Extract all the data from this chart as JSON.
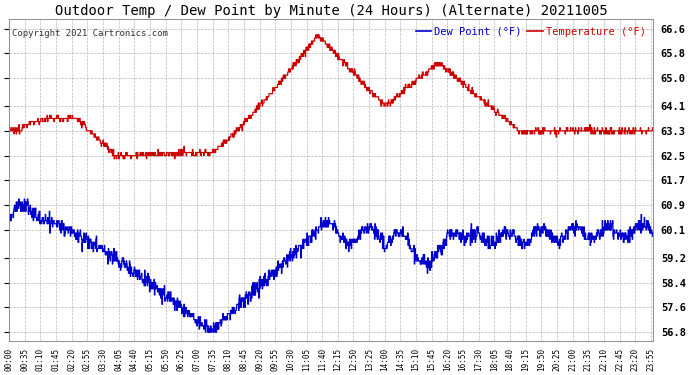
{
  "title": "Outdoor Temp / Dew Point by Minute (24 Hours) (Alternate) 20211005",
  "copyright": "Copyright 2021 Cartronics.com",
  "legend_dew": "Dew Point (°F)",
  "legend_temp": "Temperature (°F)",
  "ylabel_right_ticks": [
    66.6,
    65.8,
    65.0,
    64.1,
    63.3,
    62.5,
    61.7,
    60.9,
    60.1,
    59.2,
    58.4,
    57.6,
    56.8
  ],
  "ylim": [
    56.5,
    66.9
  ],
  "temp_color": "#cc0000",
  "dew_color": "#0000cc",
  "fig_bg": "#ffffff",
  "plot_bg": "#ffffff",
  "grid_color": "#aaaaaa",
  "title_fontsize": 10,
  "copyright_fontsize": 6.5
}
